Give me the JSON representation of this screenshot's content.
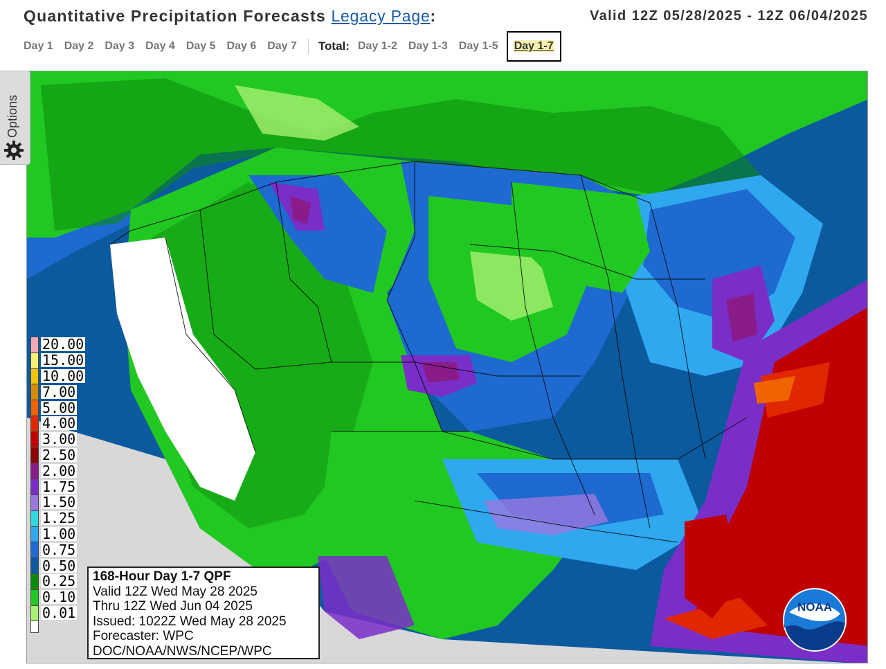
{
  "header": {
    "title": "Quantitative Precipitation Forecasts",
    "legacy_link": "Legacy Page",
    "colon": ":",
    "valid_range": "Valid 12Z 05/28/2025 - 12Z 06/04/2025"
  },
  "nav": {
    "days": [
      "Day 1",
      "Day 2",
      "Day 3",
      "Day 4",
      "Day 5",
      "Day 6",
      "Day 7"
    ],
    "total_label": "Total:",
    "totals": [
      "Day 1-2",
      "Day 1-3",
      "Day 1-5"
    ],
    "active": "Day 1-7"
  },
  "options": {
    "label": "Options",
    "icon": "gear-icon"
  },
  "legend": {
    "items": [
      {
        "label": "20.00",
        "color": "#f7a8b8"
      },
      {
        "label": "15.00",
        "color": "#f8f070"
      },
      {
        "label": "10.00",
        "color": "#f5c400"
      },
      {
        "label": "7.00",
        "color": "#d88a00"
      },
      {
        "label": "5.00",
        "color": "#f06400"
      },
      {
        "label": "4.00",
        "color": "#e02800"
      },
      {
        "label": "3.00",
        "color": "#c00000"
      },
      {
        "label": "2.50",
        "color": "#8c0000"
      },
      {
        "label": "2.00",
        "color": "#8a1c8a"
      },
      {
        "label": "1.75",
        "color": "#7a2ec8"
      },
      {
        "label": "1.50",
        "color": "#9a78e0"
      },
      {
        "label": "1.25",
        "color": "#30d8e0"
      },
      {
        "label": "1.00",
        "color": "#30a8f0"
      },
      {
        "label": "0.75",
        "color": "#1e6ad0"
      },
      {
        "label": "0.50",
        "color": "#0c5a9e"
      },
      {
        "label": "0.25",
        "color": "#0a8a0a"
      },
      {
        "label": "0.10",
        "color": "#22c822"
      },
      {
        "label": "0.01",
        "color": "#a8f070"
      }
    ],
    "zero_color": "#ffffff"
  },
  "info": {
    "line1": "168-Hour Day 1-7 QPF",
    "line2": "Valid 12Z Wed May 28 2025",
    "line3": "Thru 12Z Wed Jun 04 2025",
    "line4": "Issued: 1022Z Wed May 28 2025",
    "line5": "Forecaster: WPC",
    "line6": "DOC/NOAA/NWS/NCEP/WPC"
  },
  "logo": {
    "text": "NOAA",
    "icon": "noaa-logo"
  },
  "colors": {
    "ocean": "#0c5a9e",
    "gulf_heavy": "#c00000",
    "land_gray": "#d8d8d8"
  }
}
